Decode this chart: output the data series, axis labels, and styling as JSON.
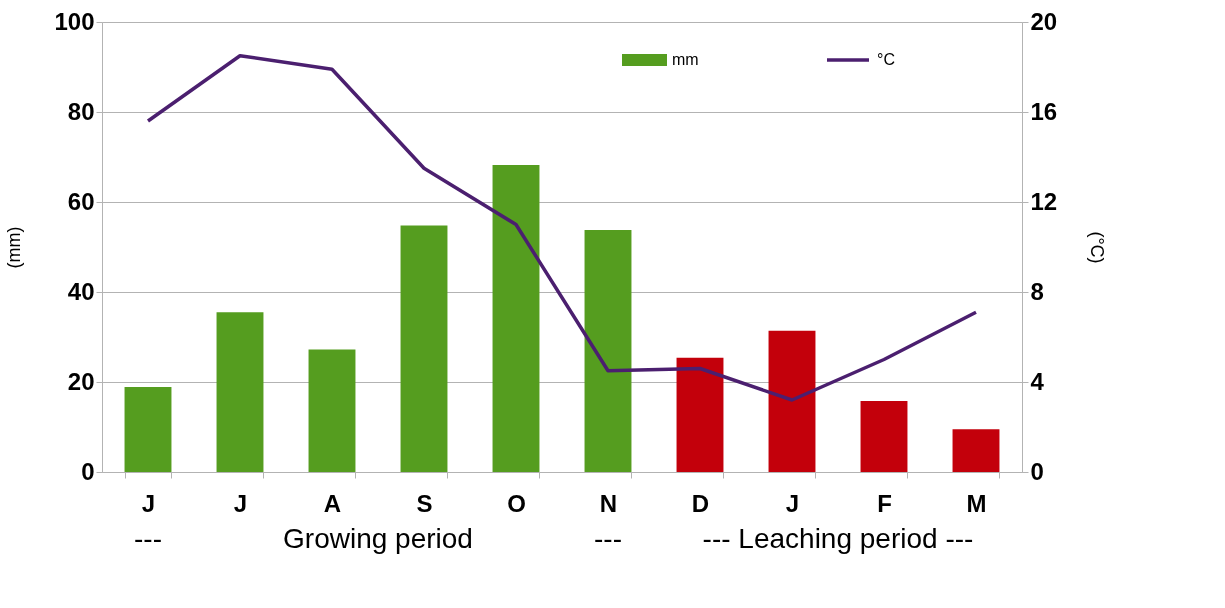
{
  "chart_data": {
    "type": "bar",
    "categories": [
      "J",
      "J",
      "A",
      "S",
      "O",
      "N",
      "D",
      "J",
      "F",
      "M"
    ],
    "series": [
      {
        "name": "mm",
        "color": "#559d1f",
        "colors": [
          "#559d1f",
          "#559d1f",
          "#559d1f",
          "#559d1f",
          "#559d1f",
          "#559d1f",
          "#c3000b",
          "#c3000b",
          "#c3000b",
          "#c3000b"
        ],
        "values": [
          18.9,
          35.5,
          27.2,
          54.8,
          68.2,
          53.8,
          25.4,
          31.4,
          15.8,
          9.5
        ]
      },
      {
        "name": "°C",
        "type": "line",
        "axis": "y2",
        "color": "#4b1f6f",
        "values": [
          15.6,
          18.5,
          17.9,
          13.5,
          11.0,
          4.5,
          4.6,
          3.2,
          5.0,
          7.1
        ]
      }
    ],
    "ylabel": "(mm)",
    "y2label": "(°C)",
    "ylim": [
      0,
      100
    ],
    "yticks": [
      0,
      20,
      40,
      60,
      80,
      100
    ],
    "y2lim": [
      0,
      20
    ],
    "y2ticks": [
      0,
      4,
      8,
      12,
      16,
      20
    ],
    "grid": "y",
    "legend": "top",
    "annotations": [
      "---",
      "Growing period",
      "---",
      "--- Leaching period ---"
    ]
  }
}
